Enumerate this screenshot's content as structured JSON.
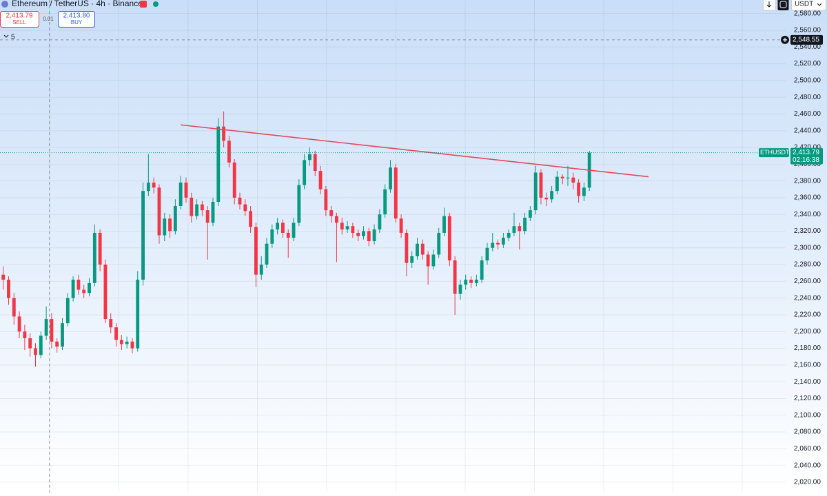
{
  "header": {
    "title": "Ethereum / TetherUS · 4h · Binance",
    "sell_price": "2,413.79",
    "sell_label": "SELL",
    "spread": "0.01",
    "buy_price": "2,413.80",
    "buy_label": "BUY",
    "indicators": "5",
    "currency": "USDT"
  },
  "chart_data": {
    "type": "candlestick",
    "symbol": "ETHUSDT",
    "up_color": "#089981",
    "down_color": "#f23645",
    "xlim": [
      -0.6,
      145.5
    ],
    "ylim": [
      2007.6,
      2596.2
    ],
    "yticks": [
      {
        "value": 2020,
        "label": "2,020.00"
      },
      {
        "value": 2040,
        "label": "2,040.00"
      },
      {
        "value": 2060,
        "label": "2,060.00"
      },
      {
        "value": 2080,
        "label": "2,080.00"
      },
      {
        "value": 2100,
        "label": "2,100.00"
      },
      {
        "value": 2120,
        "label": "2,120.00"
      },
      {
        "value": 2140,
        "label": "2,140.00"
      },
      {
        "value": 2160,
        "label": "2,160.00"
      },
      {
        "value": 2180,
        "label": "2,180.00"
      },
      {
        "value": 2200,
        "label": "2,200.00"
      },
      {
        "value": 2220,
        "label": "2,220.00"
      },
      {
        "value": 2240,
        "label": "2,240.00"
      },
      {
        "value": 2260,
        "label": "2,260.00"
      },
      {
        "value": 2280,
        "label": "2,280.00"
      },
      {
        "value": 2300,
        "label": "2,300.00"
      },
      {
        "value": 2320,
        "label": "2,320.00"
      },
      {
        "value": 2340,
        "label": "2,340.00"
      },
      {
        "value": 2360,
        "label": "2,360.00"
      },
      {
        "value": 2380,
        "label": "2,380.00"
      },
      {
        "value": 2400,
        "label": "2,400.00"
      },
      {
        "value": 2420,
        "label": "2,420.00"
      },
      {
        "value": 2440,
        "label": "2,440.00"
      },
      {
        "value": 2460,
        "label": "2,460.00"
      },
      {
        "value": 2480,
        "label": "2,480.00"
      },
      {
        "value": 2500,
        "label": "2,500.00"
      },
      {
        "value": 2520,
        "label": "2,520.00"
      },
      {
        "value": 2540,
        "label": "2,540.00"
      },
      {
        "value": 2560,
        "label": "2,560.00"
      },
      {
        "value": 2580,
        "label": "2,580.00"
      }
    ],
    "grid": true,
    "ohlc": [
      [
        2268,
        2278,
        2250,
        2262
      ],
      [
        2262,
        2266,
        2232,
        2240
      ],
      [
        2240,
        2246,
        2208,
        2218
      ],
      [
        2218,
        2224,
        2192,
        2200
      ],
      [
        2200,
        2208,
        2178,
        2192
      ],
      [
        2192,
        2198,
        2170,
        2180
      ],
      [
        2180,
        2186,
        2158,
        2172
      ],
      [
        2172,
        2200,
        2168,
        2195
      ],
      [
        2195,
        2230,
        2190,
        2215
      ],
      [
        2215,
        2222,
        2180,
        2188
      ],
      [
        2188,
        2192,
        2175,
        2182
      ],
      [
        2182,
        2216,
        2178,
        2210
      ],
      [
        2210,
        2246,
        2206,
        2240
      ],
      [
        2240,
        2266,
        2236,
        2262
      ],
      [
        2262,
        2268,
        2244,
        2250
      ],
      [
        2250,
        2256,
        2240,
        2246
      ],
      [
        2246,
        2264,
        2242,
        2258
      ],
      [
        2258,
        2328,
        2254,
        2318
      ],
      [
        2318,
        2322,
        2272,
        2280
      ],
      [
        2280,
        2286,
        2210,
        2215
      ],
      [
        2215,
        2222,
        2198,
        2205
      ],
      [
        2205,
        2210,
        2182,
        2190
      ],
      [
        2190,
        2196,
        2178,
        2185
      ],
      [
        2185,
        2194,
        2180,
        2188
      ],
      [
        2188,
        2192,
        2174,
        2180
      ],
      [
        2180,
        2272,
        2176,
        2262
      ],
      [
        2262,
        2378,
        2255,
        2368
      ],
      [
        2368,
        2412,
        2362,
        2378
      ],
      [
        2378,
        2384,
        2365,
        2372
      ],
      [
        2372,
        2376,
        2305,
        2315
      ],
      [
        2315,
        2342,
        2308,
        2335
      ],
      [
        2335,
        2340,
        2312,
        2320
      ],
      [
        2320,
        2358,
        2316,
        2350
      ],
      [
        2350,
        2386,
        2346,
        2378
      ],
      [
        2378,
        2384,
        2354,
        2360
      ],
      [
        2360,
        2366,
        2330,
        2338
      ],
      [
        2338,
        2358,
        2334,
        2352
      ],
      [
        2352,
        2356,
        2338,
        2345
      ],
      [
        2345,
        2350,
        2286,
        2330
      ],
      [
        2330,
        2360,
        2326,
        2355
      ],
      [
        2355,
        2455,
        2350,
        2445
      ],
      [
        2445,
        2463,
        2420,
        2428
      ],
      [
        2428,
        2434,
        2396,
        2402
      ],
      [
        2402,
        2406,
        2352,
        2360
      ],
      [
        2360,
        2366,
        2346,
        2352
      ],
      [
        2352,
        2358,
        2338,
        2344
      ],
      [
        2344,
        2350,
        2318,
        2325
      ],
      [
        2325,
        2330,
        2253,
        2268
      ],
      [
        2268,
        2290,
        2262,
        2280
      ],
      [
        2280,
        2312,
        2276,
        2305
      ],
      [
        2305,
        2328,
        2300,
        2322
      ],
      [
        2322,
        2336,
        2316,
        2330
      ],
      [
        2330,
        2334,
        2312,
        2318
      ],
      [
        2318,
        2322,
        2288,
        2312
      ],
      [
        2312,
        2336,
        2308,
        2330
      ],
      [
        2330,
        2382,
        2326,
        2375
      ],
      [
        2375,
        2412,
        2370,
        2405
      ],
      [
        2405,
        2420,
        2398,
        2412
      ],
      [
        2412,
        2416,
        2386,
        2392
      ],
      [
        2392,
        2398,
        2364,
        2370
      ],
      [
        2370,
        2374,
        2338,
        2345
      ],
      [
        2345,
        2350,
        2330,
        2338
      ],
      [
        2338,
        2342,
        2283,
        2330
      ],
      [
        2330,
        2336,
        2316,
        2322
      ],
      [
        2322,
        2332,
        2318,
        2326
      ],
      [
        2326,
        2330,
        2312,
        2318
      ],
      [
        2318,
        2322,
        2308,
        2314
      ],
      [
        2314,
        2326,
        2310,
        2320
      ],
      [
        2320,
        2324,
        2302,
        2308
      ],
      [
        2308,
        2328,
        2304,
        2322
      ],
      [
        2322,
        2346,
        2318,
        2340
      ],
      [
        2340,
        2376,
        2336,
        2370
      ],
      [
        2370,
        2405,
        2366,
        2396
      ],
      [
        2396,
        2400,
        2330,
        2335
      ],
      [
        2335,
        2340,
        2312,
        2318
      ],
      [
        2318,
        2322,
        2266,
        2282
      ],
      [
        2282,
        2296,
        2276,
        2290
      ],
      [
        2290,
        2312,
        2286,
        2305
      ],
      [
        2305,
        2310,
        2286,
        2292
      ],
      [
        2292,
        2296,
        2256,
        2278
      ],
      [
        2278,
        2298,
        2274,
        2292
      ],
      [
        2292,
        2324,
        2288,
        2318
      ],
      [
        2318,
        2348,
        2314,
        2338
      ],
      [
        2338,
        2342,
        2278,
        2285
      ],
      [
        2285,
        2290,
        2220,
        2245
      ],
      [
        2245,
        2262,
        2238,
        2256
      ],
      [
        2256,
        2268,
        2250,
        2262
      ],
      [
        2262,
        2266,
        2252,
        2258
      ],
      [
        2258,
        2268,
        2254,
        2262
      ],
      [
        2262,
        2290,
        2258,
        2285
      ],
      [
        2285,
        2306,
        2280,
        2300
      ],
      [
        2300,
        2318,
        2296,
        2306
      ],
      [
        2306,
        2310,
        2298,
        2304
      ],
      [
        2304,
        2318,
        2300,
        2312
      ],
      [
        2312,
        2322,
        2308,
        2318
      ],
      [
        2318,
        2342,
        2314,
        2326
      ],
      [
        2326,
        2330,
        2298,
        2320
      ],
      [
        2320,
        2342,
        2316,
        2336
      ],
      [
        2336,
        2350,
        2332,
        2345
      ],
      [
        2345,
        2398,
        2340,
        2390
      ],
      [
        2390,
        2394,
        2352,
        2360
      ],
      [
        2360,
        2366,
        2350,
        2358
      ],
      [
        2358,
        2374,
        2354,
        2368
      ],
      [
        2368,
        2392,
        2364,
        2385
      ],
      [
        2385,
        2388,
        2376,
        2383
      ],
      [
        2383,
        2398,
        2374,
        2384
      ],
      [
        2384,
        2390,
        2370,
        2378
      ],
      [
        2378,
        2382,
        2354,
        2362
      ],
      [
        2362,
        2378,
        2356,
        2372
      ],
      [
        2372,
        2416,
        2368,
        2413.79
      ]
    ],
    "trendline": {
      "x": [
        33,
        120
      ],
      "y": [
        2447,
        2385
      ],
      "color": "#e8455a"
    },
    "crosshair": {
      "x": 8.6,
      "y": {
        "value": 2548.55,
        "label": "2,548.55"
      }
    },
    "last_price": {
      "value": 2413.79,
      "label": "2,413.79",
      "countdown": "02:16:38"
    }
  }
}
